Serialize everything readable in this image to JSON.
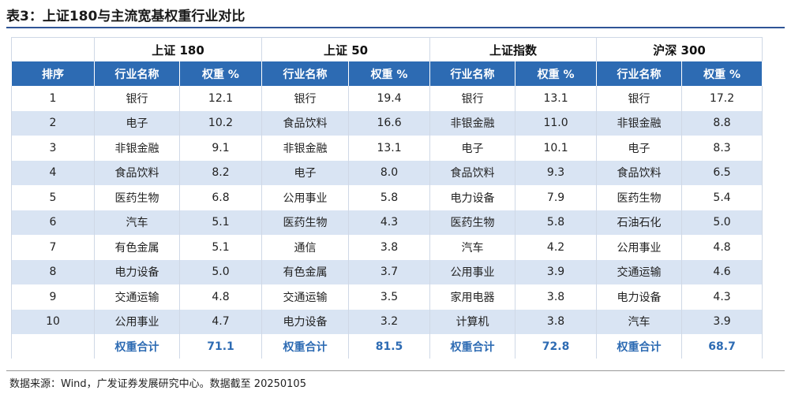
{
  "title": "表3：上证180与主流宽基权重行业对比",
  "groups": [
    "上证 180",
    "上证 50",
    "上证指数",
    "沪深 300"
  ],
  "columns": {
    "rank": "排序",
    "industry": "行业名称",
    "weight": "权重 %"
  },
  "rows": [
    [
      "1",
      "银行",
      "12.1",
      "银行",
      "19.4",
      "银行",
      "13.1",
      "银行",
      "17.2"
    ],
    [
      "2",
      "电子",
      "10.2",
      "食品饮料",
      "16.6",
      "非银金融",
      "11.0",
      "非银金融",
      "8.8"
    ],
    [
      "3",
      "非银金融",
      "9.1",
      "非银金融",
      "13.1",
      "电子",
      "10.1",
      "电子",
      "8.3"
    ],
    [
      "4",
      "食品饮料",
      "8.2",
      "电子",
      "8.0",
      "食品饮料",
      "9.3",
      "食品饮料",
      "6.5"
    ],
    [
      "5",
      "医药生物",
      "6.8",
      "公用事业",
      "5.8",
      "电力设备",
      "7.9",
      "医药生物",
      "5.4"
    ],
    [
      "6",
      "汽车",
      "5.1",
      "医药生物",
      "4.3",
      "医药生物",
      "5.8",
      "石油石化",
      "5.0"
    ],
    [
      "7",
      "有色金属",
      "5.1",
      "通信",
      "3.8",
      "汽车",
      "4.2",
      "公用事业",
      "4.8"
    ],
    [
      "8",
      "电力设备",
      "5.0",
      "有色金属",
      "3.7",
      "公用事业",
      "3.9",
      "交通运输",
      "4.6"
    ],
    [
      "9",
      "交通运输",
      "4.8",
      "交通运输",
      "3.5",
      "家用电器",
      "3.8",
      "电力设备",
      "4.3"
    ],
    [
      "10",
      "公用事业",
      "4.7",
      "电力设备",
      "3.2",
      "计算机",
      "3.8",
      "汽车",
      "3.9"
    ]
  ],
  "totals": {
    "label": "权重合计",
    "values": [
      "71.1",
      "81.5",
      "72.8",
      "68.7"
    ]
  },
  "source": "数据来源：Wind，广发证券发展研究中心。数据截至 20250105",
  "colors": {
    "header_bg": "#2d6bb3",
    "stripe": "#d9e4f3",
    "total_text": "#2d6bb3"
  }
}
